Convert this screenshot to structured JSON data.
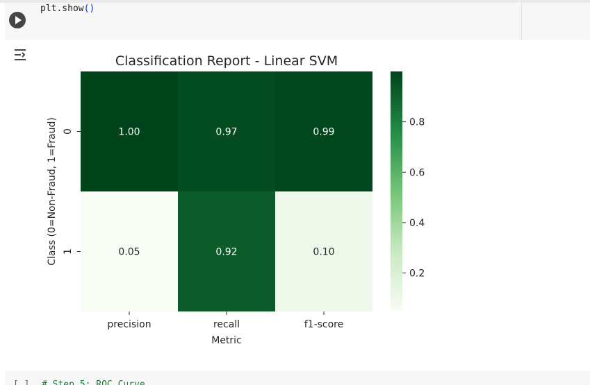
{
  "code_cell": {
    "code_fn": "plt.show",
    "code_parens": "()"
  },
  "next_cell": {
    "bracket": "[ ]",
    "code": "# Step 5: ROC Curve"
  },
  "chart_data": {
    "type": "heatmap",
    "title": "Classification Report - Linear SVM",
    "xlabel": "Metric",
    "ylabel": "Class (0=Non-Fraud, 1=Fraud)",
    "x_categories": [
      "precision",
      "recall",
      "f1-score"
    ],
    "y_categories": [
      "0",
      "1"
    ],
    "values": [
      [
        1.0,
        0.97,
        0.99
      ],
      [
        0.05,
        0.92,
        0.1
      ]
    ],
    "annotations": [
      [
        "1.00",
        "0.97",
        "0.99"
      ],
      [
        "0.05",
        "0.92",
        "0.10"
      ]
    ],
    "colormap": "Greens",
    "colorbar": {
      "range": [
        0.05,
        1.0
      ],
      "ticks": [
        0.8,
        0.6,
        0.4,
        0.2
      ],
      "tick_labels": [
        "0.8",
        "0.6",
        "0.4",
        "0.2"
      ]
    },
    "colors": {
      "low": "#f7fcf5",
      "high": "#00441b"
    }
  }
}
